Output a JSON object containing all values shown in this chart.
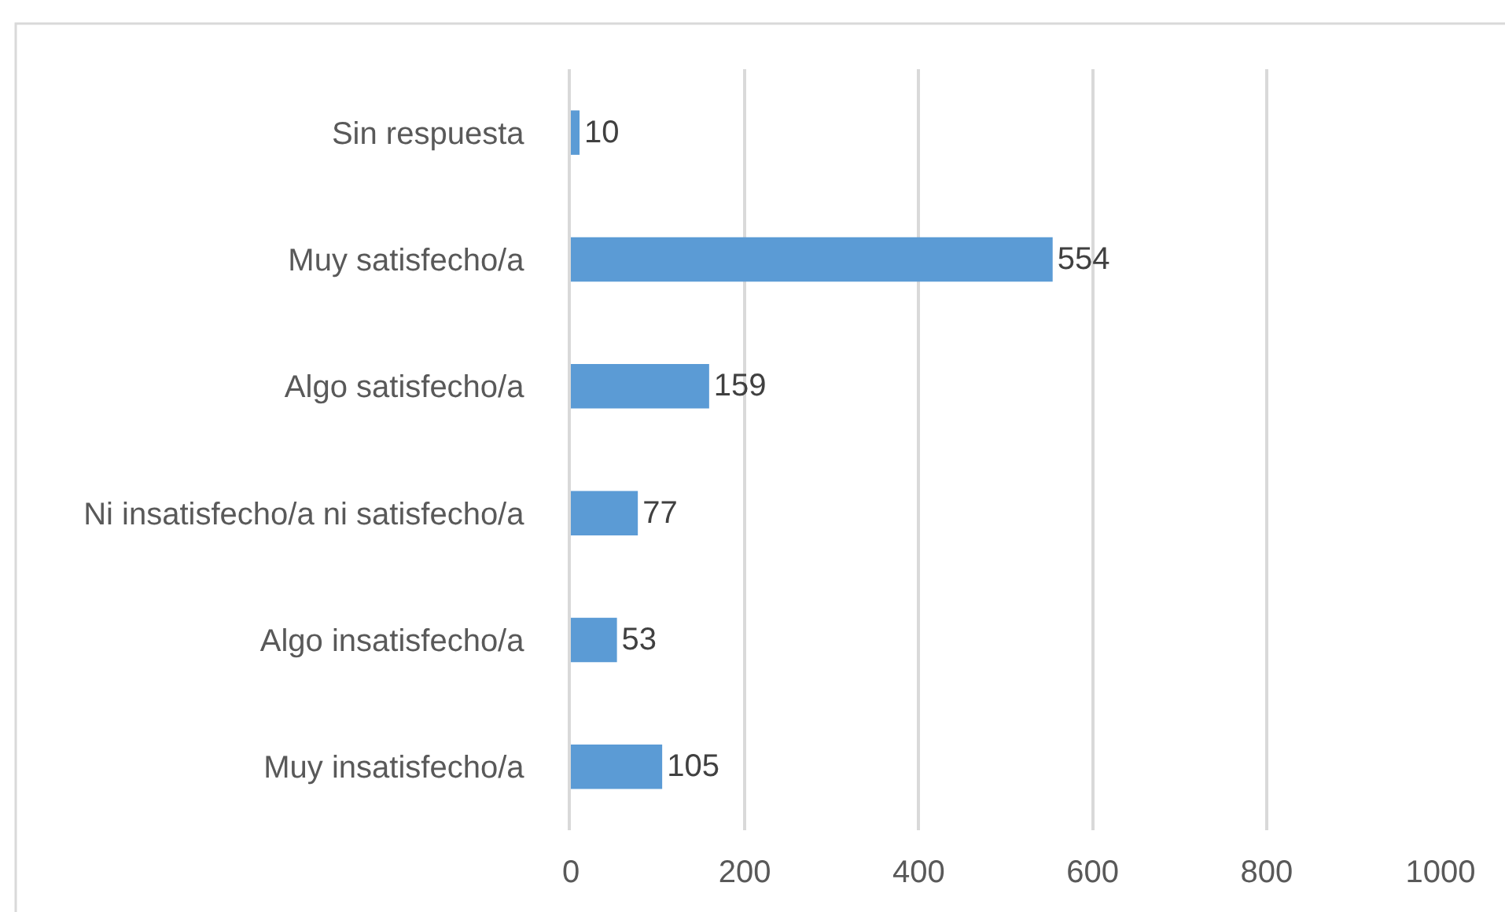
{
  "chart_data": {
    "type": "bar",
    "orientation": "horizontal",
    "categories": [
      "Sin respuesta",
      "Muy satisfecho/a",
      "Algo satisfecho/a",
      "Ni insatisfecho/a ni satisfecho/a",
      "Algo insatisfecho/a",
      "Muy insatisfecho/a"
    ],
    "values": [
      10,
      554,
      159,
      77,
      53,
      105
    ],
    "color": "#5b9bd5",
    "xlim": [
      0,
      1000
    ],
    "xticks": [
      0,
      200,
      400,
      600,
      800,
      1000
    ],
    "grid": "x",
    "data_labels": true
  }
}
